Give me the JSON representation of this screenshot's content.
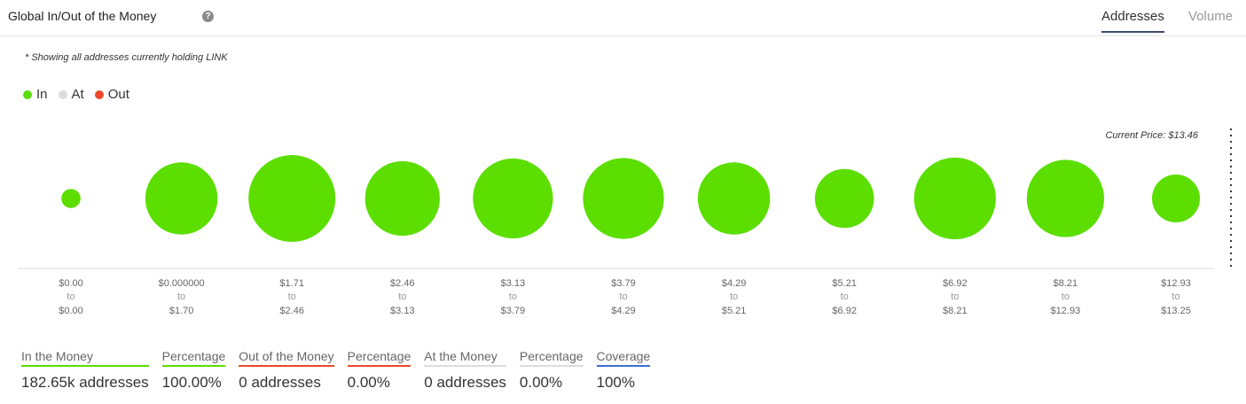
{
  "header": {
    "title": "Global In/Out of the Money",
    "help_icon": "question-icon",
    "tabs": [
      {
        "label": "Addresses",
        "active": true
      },
      {
        "label": "Volume",
        "active": false
      }
    ]
  },
  "note": "* Showing all addresses currently holding LINK",
  "legend": [
    {
      "label": "In",
      "color": "#5bde00"
    },
    {
      "label": "At",
      "color": "#dcdcdc"
    },
    {
      "label": "Out",
      "color": "#ee4a2a"
    }
  ],
  "colors": {
    "in": "#5bde00",
    "at": "#dcdcdc",
    "out": "#ee4a2a",
    "coverage": "#3b6fd6",
    "axis": "#dddddd"
  },
  "current_price_label": "Current Price: $13.46",
  "chart_data": {
    "type": "scatter",
    "grid": false,
    "categories": [
      {
        "from": "$0.00",
        "to": "$0.00"
      },
      {
        "from": "$0.000000",
        "to": "$1.70"
      },
      {
        "from": "$1.71",
        "to": "$2.46"
      },
      {
        "from": "$2.46",
        "to": "$3.13"
      },
      {
        "from": "$3.13",
        "to": "$3.79"
      },
      {
        "from": "$3.79",
        "to": "$4.29"
      },
      {
        "from": "$4.29",
        "to": "$5.21"
      },
      {
        "from": "$5.21",
        "to": "$6.92"
      },
      {
        "from": "$6.92",
        "to": "$8.21"
      },
      {
        "from": "$8.21",
        "to": "$12.93"
      },
      {
        "from": "$12.93",
        "to": "$13.25"
      }
    ],
    "bubble_size_relative": [
      0.22,
      0.83,
      1.0,
      0.86,
      0.92,
      0.93,
      0.83,
      0.68,
      0.94,
      0.89,
      0.55
    ],
    "status": [
      "in",
      "in",
      "in",
      "in",
      "in",
      "in",
      "in",
      "in",
      "in",
      "in",
      "in"
    ]
  },
  "stats": [
    {
      "label": "In the Money",
      "value": "182.65k addresses",
      "color": "#5bde00"
    },
    {
      "label": "Percentage",
      "value": "100.00%",
      "color": "#5bde00"
    },
    {
      "label": "Out of the Money",
      "value": "0 addresses",
      "color": "#ee4a2a"
    },
    {
      "label": "Percentage",
      "value": "0.00%",
      "color": "#ee4a2a"
    },
    {
      "label": "At the Money",
      "value": "0 addresses",
      "color": "#dcdcdc"
    },
    {
      "label": "Percentage",
      "value": "0.00%",
      "color": "#dcdcdc"
    },
    {
      "label": "Coverage",
      "value": "100%",
      "color": "#3b6fd6"
    }
  ]
}
